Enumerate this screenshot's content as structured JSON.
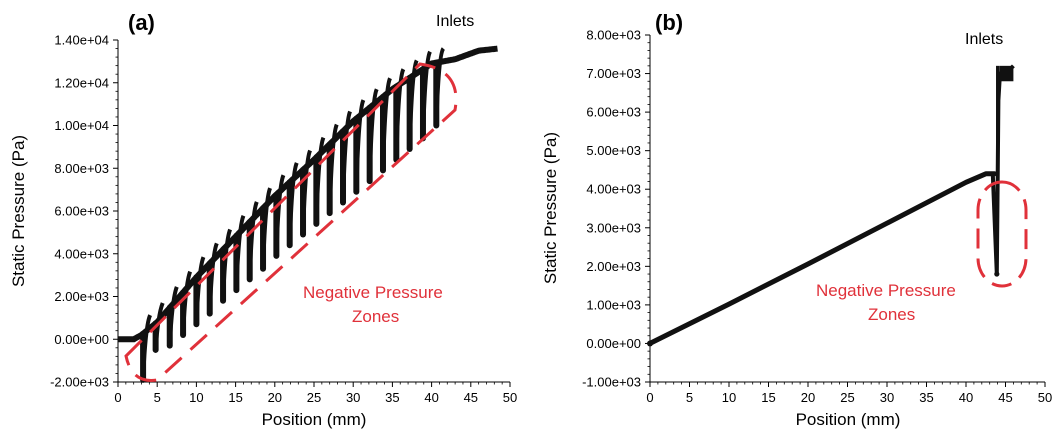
{
  "chart_data": [
    {
      "type": "scatter",
      "panel_label": "(a)",
      "xlabel": "Position (mm)",
      "ylabel": "Static Pressure (Pa)",
      "xlim": [
        0,
        50
      ],
      "ylim": [
        -2000,
        14000
      ],
      "x_ticks": [
        "0",
        "5",
        "10",
        "15",
        "20",
        "25",
        "30",
        "35",
        "40",
        "45",
        "50"
      ],
      "y_ticks": [
        "-2.00e+03",
        "0.00e+00",
        "2.00e+03",
        "4.00e+03",
        "6.00e+03",
        "8.00e+03",
        "1.00e+04",
        "1.20e+04",
        "1.40e+04"
      ],
      "annotations": {
        "inlets": "Inlets",
        "zone_line1": "Negative Pressure",
        "zone_line2": "Zones"
      },
      "series": [
        {
          "trend_x": [
            0,
            2,
            3,
            5,
            10,
            15,
            20,
            25,
            30,
            35,
            40,
            43,
            46,
            48.5
          ],
          "trend_y": [
            0,
            0,
            200,
            800,
            2900,
            4800,
            6700,
            8400,
            10200,
            11700,
            12900,
            13100,
            13500,
            13600
          ],
          "minima_x": [
            3.2,
            4.8,
            6.6,
            8.3,
            10.0,
            11.7,
            13.4,
            15.1,
            16.8,
            18.5,
            20.2,
            21.9,
            23.6,
            25.3,
            27.0,
            28.7,
            30.4,
            32.1,
            33.8,
            35.5,
            37.2,
            38.9,
            40.6
          ],
          "minima_y": [
            -1900,
            -500,
            -300,
            200,
            700,
            1200,
            1800,
            2300,
            2800,
            3300,
            3900,
            4400,
            4900,
            5400,
            5900,
            6400,
            6900,
            7400,
            7900,
            8400,
            8900,
            9400,
            10000
          ]
        }
      ],
      "colors": {
        "data": "#111111",
        "highlight": "#e0313a"
      }
    },
    {
      "type": "scatter",
      "panel_label": "(b)",
      "xlabel": "Position (mm)",
      "ylabel": "Static Pressure (Pa)",
      "xlim": [
        0,
        50
      ],
      "ylim": [
        -1000,
        8000
      ],
      "x_ticks": [
        "0",
        "5",
        "10",
        "15",
        "20",
        "25",
        "30",
        "35",
        "40",
        "45",
        "50"
      ],
      "y_ticks": [
        "-1.00e+03",
        "0.00e+00",
        "1.00e+03",
        "2.00e+03",
        "3.00e+03",
        "4.00e+03",
        "5.00e+03",
        "6.00e+03",
        "7.00e+03",
        "8.00e+03"
      ],
      "annotations": {
        "inlets": "Inlets",
        "zone_line1": "Negative Pressure",
        "zone_line2": "Zones"
      },
      "series": [
        {
          "x": [
            0,
            10,
            20,
            30,
            40,
            42.5,
            43.6,
            43.9,
            44.1,
            44.4,
            45.0,
            46.0
          ],
          "y": [
            0,
            1020,
            2060,
            3120,
            4180,
            4400,
            4400,
            1800,
            6300,
            7000,
            7100,
            7200
          ]
        }
      ],
      "colors": {
        "data": "#111111",
        "highlight": "#e0313a"
      }
    }
  ]
}
